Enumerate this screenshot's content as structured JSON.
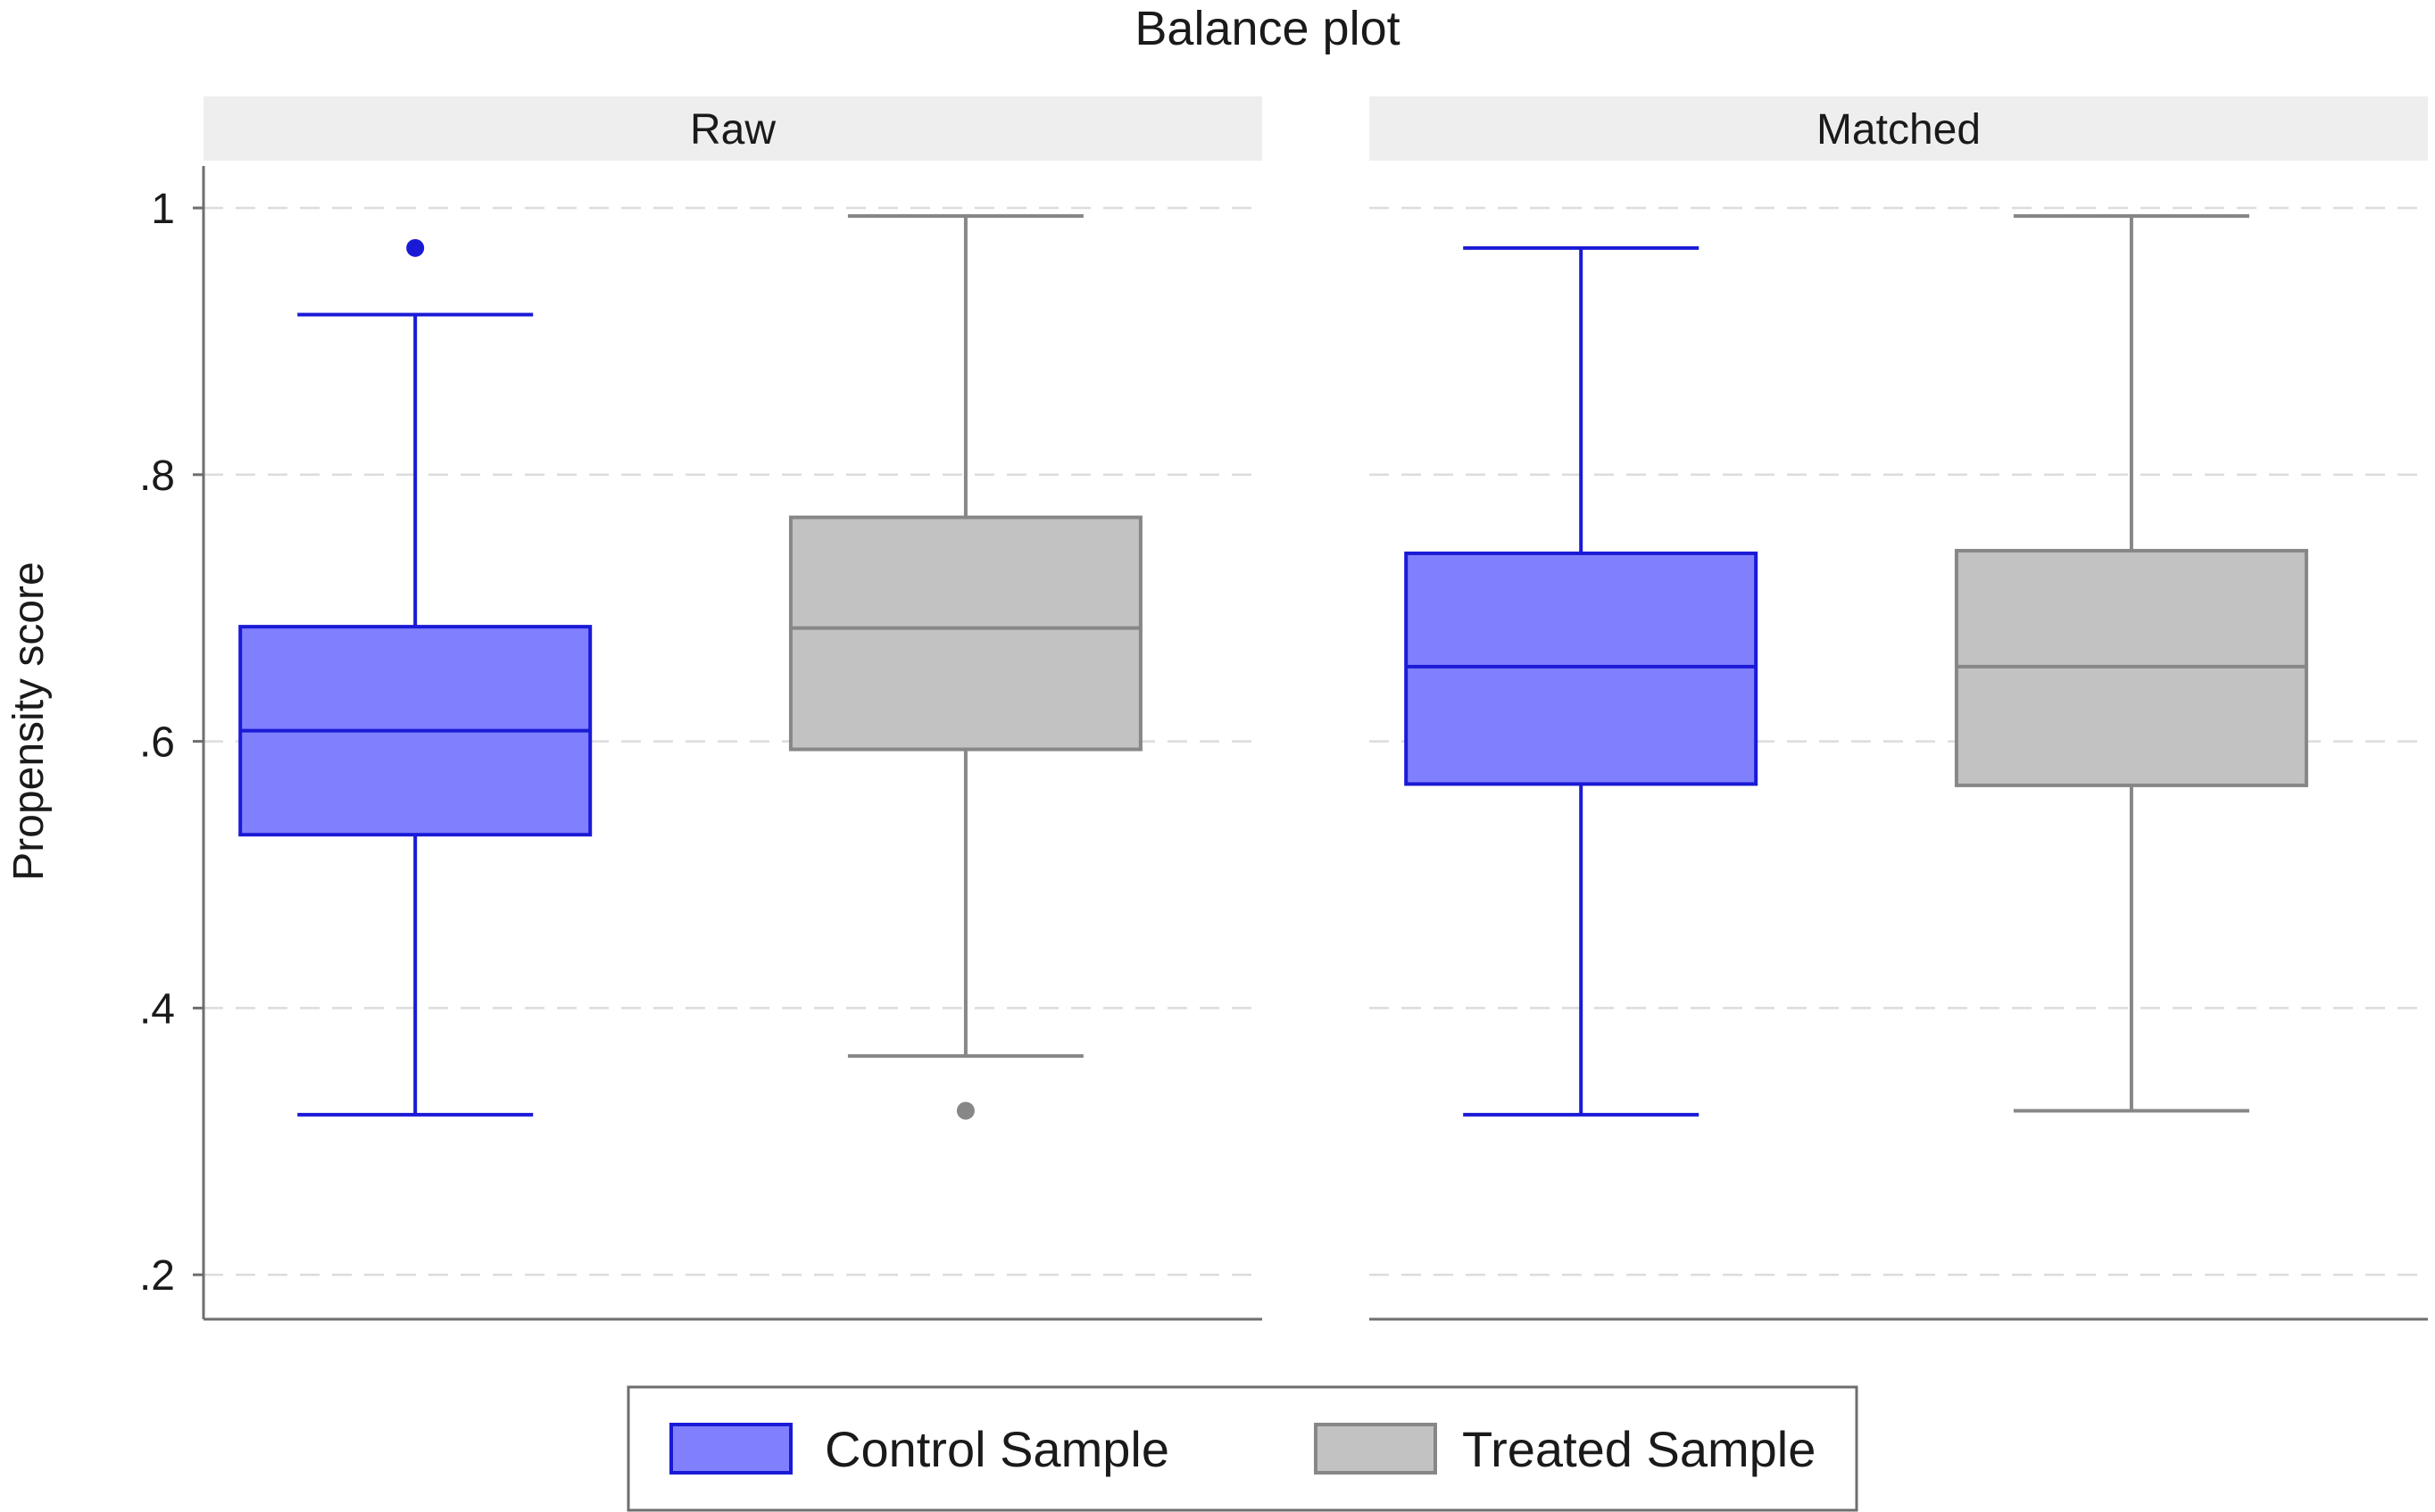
{
  "chart_data": {
    "type": "box",
    "title": "Balance plot",
    "ylabel": "Propensity score",
    "ylim": [
      0.16,
      1.05
    ],
    "yticks": [
      0.2,
      0.4,
      0.6,
      0.8,
      1.0
    ],
    "ytick_labels": [
      ".2",
      ".4",
      ".6",
      ".8",
      "1"
    ],
    "grid": true,
    "panels": [
      {
        "label": "Raw",
        "boxes": [
          {
            "group": "Control Sample",
            "whisker_low": 0.32,
            "q1": 0.53,
            "median": 0.608,
            "q3": 0.686,
            "whisker_high": 0.92,
            "outliers": [
              0.97
            ]
          },
          {
            "group": "Treated Sample",
            "whisker_low": 0.364,
            "q1": 0.594,
            "median": 0.685,
            "q3": 0.768,
            "whisker_high": 0.994,
            "outliers": [
              0.323
            ]
          }
        ]
      },
      {
        "label": "Matched",
        "boxes": [
          {
            "group": "Control Sample",
            "whisker_low": 0.32,
            "q1": 0.568,
            "median": 0.656,
            "q3": 0.741,
            "whisker_high": 0.97,
            "outliers": []
          },
          {
            "group": "Treated Sample",
            "whisker_low": 0.323,
            "q1": 0.567,
            "median": 0.656,
            "q3": 0.743,
            "whisker_high": 0.994,
            "outliers": []
          }
        ]
      }
    ],
    "legend": {
      "placement": "bottom",
      "items": [
        {
          "label": "Control Sample",
          "fill": "#8080ff",
          "stroke": "#1a1ad6"
        },
        {
          "label": "Treated Sample",
          "fill": "#c2c2c2",
          "stroke": "#878787"
        }
      ]
    }
  },
  "colors": {
    "control_fill": "#8080ff",
    "control_line": "#1a1ad6",
    "treated_fill": "#c2c2c2",
    "treated_line": "#878787",
    "strip_fill": "#eeeeee",
    "grid": "#dcdcdc",
    "axis": "#6e6e6e"
  }
}
